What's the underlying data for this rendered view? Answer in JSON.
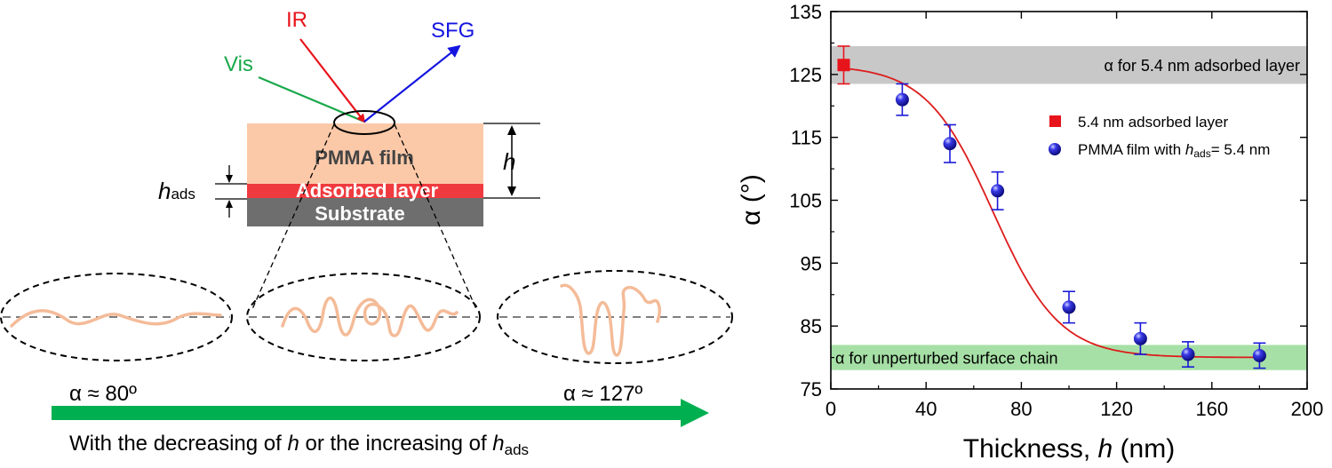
{
  "schematic": {
    "beams": {
      "ir": "IR",
      "sfg": "SFG",
      "vis": "Vis"
    },
    "layers": {
      "film": "PMMA film",
      "adsorbed": "Adsorbed layer",
      "substrate": "Substrate"
    },
    "h_label": "h",
    "hads_main": "h",
    "hads_sub": "ads",
    "alpha_left": "α ≈ 80º",
    "alpha_right": "α ≈ 127º",
    "caption_main": "With the decreasing of ",
    "caption_h": "h",
    "caption_mid": " or the increasing of ",
    "caption_h2": "h",
    "caption_sub": "ads",
    "colors": {
      "ir": "#e8141b",
      "sfg": "#1515e0",
      "vis": "#19a84a",
      "film": "#fcc9a8",
      "adsorbed": "#ef3b3f",
      "substrate": "#6e6e6e",
      "chain": "#f4bb98",
      "arrow": "#00b050"
    }
  },
  "chart_data": {
    "type": "scatter",
    "xlabel_main": "Thickness, ",
    "xlabel_var": "h",
    "xlabel_unit": " (nm)",
    "ylabel": "α (°)",
    "xlim": [
      0,
      200
    ],
    "ylim": [
      75,
      135
    ],
    "xticks": [
      "0",
      "40",
      "80",
      "120",
      "160",
      "200"
    ],
    "yticks": [
      "75",
      "85",
      "95",
      "105",
      "115",
      "125",
      "135"
    ],
    "legend_position": "right",
    "legend": {
      "adsorbed": "5.4 nm adsorbed layer",
      "film_main": "PMMA film with ",
      "film_var": "h",
      "film_sub": "ads",
      "film_tail": "= 5.4 nm"
    },
    "bands": [
      {
        "label": "α  for 5.4 nm adsorbed layer",
        "ymin": 123.5,
        "ymax": 129.5,
        "color": "#c8c8c8"
      },
      {
        "label": "α  for unperturbed  surface chain",
        "ymin": 78,
        "ymax": 82,
        "color": "#a6e0a6"
      }
    ],
    "series": [
      {
        "name": "5.4 nm adsorbed layer",
        "color": "#e8141b",
        "marker": "square",
        "x": [
          5.4
        ],
        "y": [
          126.5
        ],
        "err": [
          3
        ]
      },
      {
        "name": "PMMA film with hads= 5.4 nm",
        "color": "#1a1ad8",
        "marker": "sphere",
        "x": [
          30,
          50,
          70,
          100,
          130,
          150,
          180
        ],
        "y": [
          121,
          114,
          106.5,
          88,
          83,
          80.5,
          80.3
        ],
        "err": [
          2.5,
          3,
          3,
          2.5,
          2.5,
          2,
          2
        ]
      }
    ],
    "fit": {
      "name": "fit",
      "color": "#dd1c1c",
      "type": "sigmoid",
      "top": 126.5,
      "bottom": 80,
      "x0": 68,
      "dx": 14
    }
  }
}
